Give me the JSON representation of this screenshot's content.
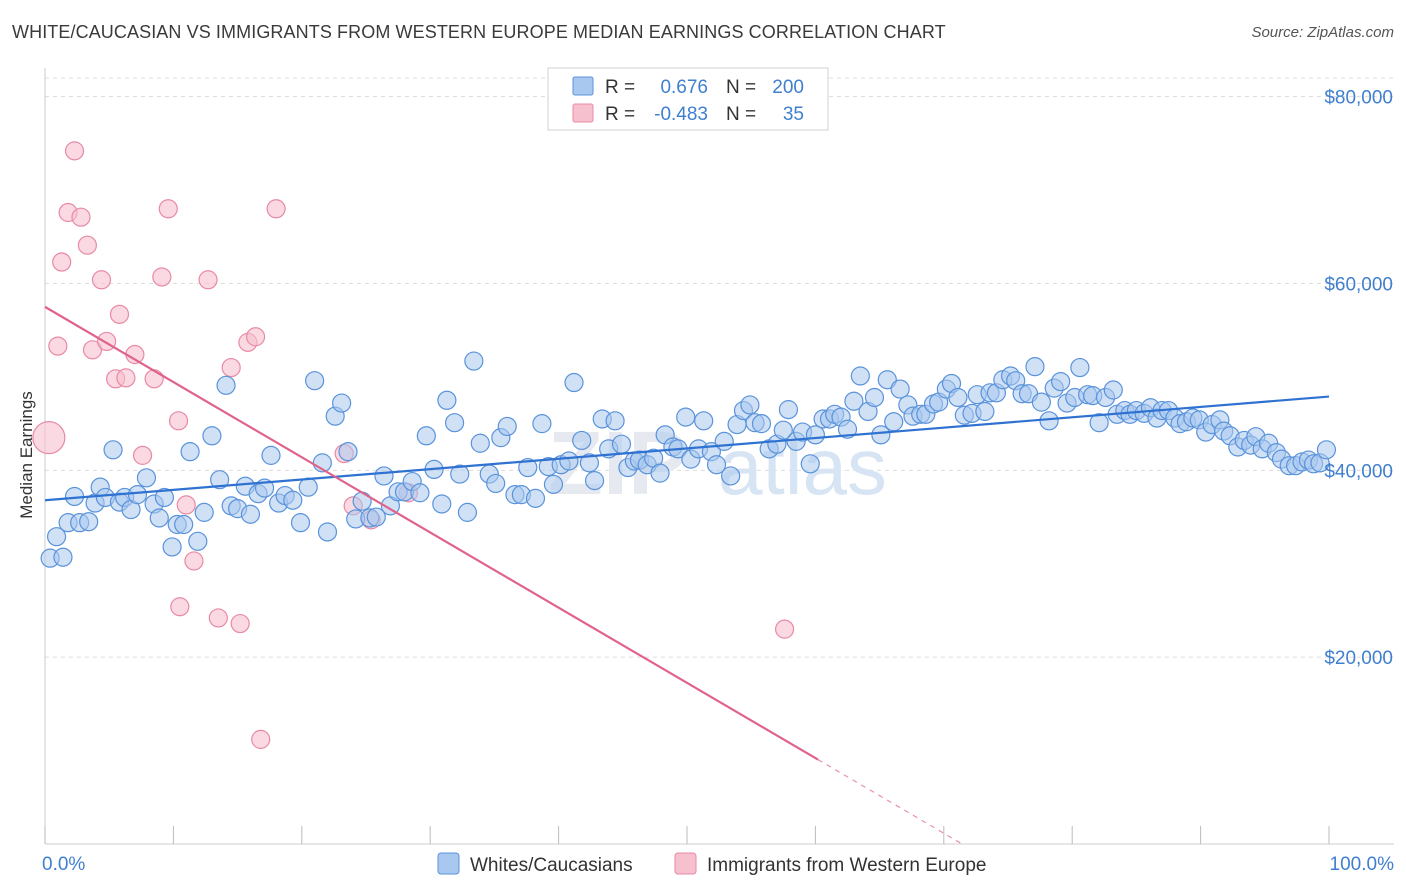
{
  "title": "WHITE/CAUCASIAN VS IMMIGRANTS FROM WESTERN EUROPE MEDIAN EARNINGS CORRELATION CHART",
  "source": "Source: ZipAtlas.com",
  "watermark": {
    "zip": "ZIP",
    "atlas": "atlas"
  },
  "legend_box": {
    "rows": [
      {
        "r_label": "R =",
        "r_value": "0.676",
        "n_label": "N =",
        "n_value": "200"
      },
      {
        "r_label": "R =",
        "r_value": "-0.483",
        "n_label": "N =",
        "n_value": "35"
      }
    ]
  },
  "colors": {
    "blue_fill": "#a9c8ef",
    "blue_stroke": "#5a93db",
    "blue_line": "#2f72d2",
    "pink_fill": "#f6c0cf",
    "pink_stroke": "#e88aa5",
    "pink_line": "#e0628b",
    "axis_text": "#3f7fd0",
    "grid": "#dcdcdc"
  },
  "chart_data": {
    "type": "scatter",
    "title": "WHITE/CAUCASIAN VS IMMIGRANTS FROM WESTERN EUROPE MEDIAN EARNINGS CORRELATION CHART",
    "xlabel": "",
    "ylabel": "Median Earnings",
    "xlim": [
      0,
      100
    ],
    "ylim": [
      0,
      82000
    ],
    "x_tick_labels": [
      "0.0%",
      "100.0%"
    ],
    "y_ticks": [
      20000,
      40000,
      60000,
      80000
    ],
    "y_tick_labels": [
      "$20,000",
      "$40,000",
      "$60,000",
      "$80,000"
    ],
    "grid": true,
    "legend_position": "bottom",
    "series": [
      {
        "name": "Whites/Caucasians",
        "r": 0.676,
        "n": 200,
        "trend": {
          "x": [
            0,
            100
          ],
          "y": [
            36800,
            47900
          ],
          "dashed_from": null
        },
        "points": [
          [
            0.4,
            30600
          ],
          [
            0.9,
            32900
          ],
          [
            1.4,
            30700
          ],
          [
            1.8,
            34400
          ],
          [
            2.3,
            37200
          ],
          [
            2.7,
            34400
          ],
          [
            3.4,
            34500
          ],
          [
            3.9,
            36500
          ],
          [
            4.3,
            38200
          ],
          [
            4.7,
            37100
          ],
          [
            5.3,
            42200
          ],
          [
            5.8,
            36600
          ],
          [
            6.2,
            37100
          ],
          [
            6.7,
            35800
          ],
          [
            7.2,
            37400
          ],
          [
            7.9,
            39200
          ],
          [
            8.5,
            36400
          ],
          [
            8.9,
            34900
          ],
          [
            9.3,
            37100
          ],
          [
            9.9,
            31800
          ],
          [
            10.3,
            34200
          ],
          [
            10.8,
            34200
          ],
          [
            11.3,
            42000
          ],
          [
            11.9,
            32400
          ],
          [
            12.4,
            35500
          ],
          [
            13.0,
            43700
          ],
          [
            13.6,
            39000
          ],
          [
            14.1,
            49100
          ],
          [
            14.5,
            36200
          ],
          [
            15.0,
            35900
          ],
          [
            15.6,
            38300
          ],
          [
            16.0,
            35300
          ],
          [
            16.6,
            37500
          ],
          [
            17.1,
            38100
          ],
          [
            17.6,
            41600
          ],
          [
            18.2,
            36500
          ],
          [
            18.7,
            37300
          ],
          [
            19.3,
            36800
          ],
          [
            19.9,
            34400
          ],
          [
            20.5,
            38200
          ],
          [
            21.0,
            49600
          ],
          [
            21.6,
            40800
          ],
          [
            22.0,
            33400
          ],
          [
            22.6,
            45800
          ],
          [
            23.1,
            47200
          ],
          [
            23.6,
            42000
          ],
          [
            24.2,
            34800
          ],
          [
            24.7,
            36700
          ],
          [
            25.3,
            34900
          ],
          [
            25.8,
            35000
          ],
          [
            26.4,
            39400
          ],
          [
            26.9,
            36200
          ],
          [
            27.5,
            37700
          ],
          [
            28.0,
            37700
          ],
          [
            28.6,
            38800
          ],
          [
            29.2,
            37600
          ],
          [
            29.7,
            43700
          ],
          [
            30.3,
            40100
          ],
          [
            30.9,
            36400
          ],
          [
            31.3,
            47500
          ],
          [
            31.9,
            45100
          ],
          [
            32.3,
            39600
          ],
          [
            32.9,
            35500
          ],
          [
            33.4,
            51700
          ],
          [
            33.9,
            42900
          ],
          [
            34.6,
            39600
          ],
          [
            35.1,
            38600
          ],
          [
            35.5,
            43500
          ],
          [
            36.0,
            44700
          ],
          [
            36.6,
            37400
          ],
          [
            37.1,
            37400
          ],
          [
            37.6,
            40300
          ],
          [
            38.2,
            37000
          ],
          [
            38.7,
            45000
          ],
          [
            39.2,
            40400
          ],
          [
            39.6,
            38500
          ],
          [
            40.2,
            40600
          ],
          [
            40.8,
            41000
          ],
          [
            41.2,
            49400
          ],
          [
            41.8,
            43200
          ],
          [
            42.4,
            40800
          ],
          [
            42.8,
            38900
          ],
          [
            43.4,
            45500
          ],
          [
            43.9,
            42300
          ],
          [
            44.4,
            45300
          ],
          [
            44.9,
            42800
          ],
          [
            45.4,
            40300
          ],
          [
            45.9,
            41000
          ],
          [
            46.3,
            41100
          ],
          [
            46.9,
            40600
          ],
          [
            47.4,
            41300
          ],
          [
            47.9,
            39700
          ],
          [
            48.3,
            43800
          ],
          [
            48.9,
            42500
          ],
          [
            49.3,
            42300
          ],
          [
            49.9,
            45700
          ],
          [
            50.3,
            41200
          ],
          [
            50.9,
            42300
          ],
          [
            51.3,
            45300
          ],
          [
            51.9,
            42000
          ],
          [
            52.3,
            40600
          ],
          [
            52.9,
            43100
          ],
          [
            53.4,
            39400
          ],
          [
            53.9,
            44900
          ],
          [
            54.4,
            46400
          ],
          [
            54.9,
            47000
          ],
          [
            55.3,
            45100
          ],
          [
            55.8,
            45000
          ],
          [
            56.4,
            42300
          ],
          [
            57.0,
            42800
          ],
          [
            57.5,
            44300
          ],
          [
            57.9,
            46500
          ],
          [
            58.5,
            43100
          ],
          [
            59.0,
            44100
          ],
          [
            59.6,
            40700
          ],
          [
            60.0,
            43800
          ],
          [
            60.6,
            45500
          ],
          [
            61.1,
            45500
          ],
          [
            61.5,
            46000
          ],
          [
            62.0,
            45700
          ],
          [
            62.5,
            44400
          ],
          [
            63.0,
            47400
          ],
          [
            63.5,
            50100
          ],
          [
            64.1,
            46300
          ],
          [
            64.6,
            47800
          ],
          [
            65.1,
            43800
          ],
          [
            65.6,
            49700
          ],
          [
            66.1,
            45200
          ],
          [
            66.6,
            48700
          ],
          [
            67.2,
            47000
          ],
          [
            67.6,
            45800
          ],
          [
            68.2,
            46000
          ],
          [
            68.6,
            46000
          ],
          [
            69.2,
            47100
          ],
          [
            69.6,
            47300
          ],
          [
            70.2,
            48700
          ],
          [
            70.6,
            49300
          ],
          [
            71.1,
            47800
          ],
          [
            71.6,
            45900
          ],
          [
            72.2,
            46100
          ],
          [
            72.6,
            48100
          ],
          [
            73.2,
            46300
          ],
          [
            73.6,
            48300
          ],
          [
            74.1,
            48300
          ],
          [
            74.6,
            49700
          ],
          [
            75.2,
            50100
          ],
          [
            75.6,
            49600
          ],
          [
            76.1,
            48200
          ],
          [
            76.6,
            48200
          ],
          [
            77.1,
            51100
          ],
          [
            77.6,
            47300
          ],
          [
            78.2,
            45300
          ],
          [
            78.6,
            48800
          ],
          [
            79.1,
            49500
          ],
          [
            79.6,
            47200
          ],
          [
            80.2,
            47800
          ],
          [
            80.6,
            51000
          ],
          [
            81.2,
            48100
          ],
          [
            81.6,
            48000
          ],
          [
            82.1,
            45100
          ],
          [
            82.6,
            47800
          ],
          [
            83.2,
            48600
          ],
          [
            83.5,
            46000
          ],
          [
            84.1,
            46400
          ],
          [
            84.5,
            46000
          ],
          [
            85.0,
            46400
          ],
          [
            85.6,
            46100
          ],
          [
            86.1,
            46700
          ],
          [
            86.6,
            45600
          ],
          [
            87.0,
            46400
          ],
          [
            87.5,
            46400
          ],
          [
            88.0,
            45600
          ],
          [
            88.4,
            45000
          ],
          [
            88.9,
            45200
          ],
          [
            89.4,
            45600
          ],
          [
            89.9,
            45400
          ],
          [
            90.4,
            44100
          ],
          [
            90.9,
            44900
          ],
          [
            91.5,
            45400
          ],
          [
            91.8,
            44200
          ],
          [
            92.3,
            43700
          ],
          [
            92.9,
            42500
          ],
          [
            93.4,
            43200
          ],
          [
            93.9,
            42700
          ],
          [
            94.3,
            43600
          ],
          [
            94.8,
            42300
          ],
          [
            95.3,
            42900
          ],
          [
            95.9,
            41900
          ],
          [
            96.3,
            41200
          ],
          [
            96.9,
            40500
          ],
          [
            97.4,
            40500
          ],
          [
            97.9,
            40900
          ],
          [
            98.4,
            41100
          ],
          [
            98.8,
            40700
          ],
          [
            99.3,
            40800
          ],
          [
            99.8,
            42200
          ]
        ]
      },
      {
        "name": "Immigrants from Western Europe",
        "r": -0.483,
        "n": 35,
        "trend": {
          "x": [
            0,
            100
          ],
          "y": [
            57500,
            -23000
          ],
          "dashed_from": 60.2
        },
        "points": [
          [
            0.3,
            43500
          ],
          [
            1.0,
            53300
          ],
          [
            1.3,
            62300
          ],
          [
            1.8,
            67600
          ],
          [
            2.3,
            74200
          ],
          [
            2.8,
            67100
          ],
          [
            3.3,
            64100
          ],
          [
            3.7,
            52900
          ],
          [
            4.4,
            60400
          ],
          [
            4.8,
            53800
          ],
          [
            5.5,
            49800
          ],
          [
            5.8,
            56700
          ],
          [
            6.3,
            49900
          ],
          [
            7.0,
            52400
          ],
          [
            7.6,
            41600
          ],
          [
            8.5,
            49800
          ],
          [
            9.1,
            60700
          ],
          [
            9.6,
            68000
          ],
          [
            10.5,
            25400
          ],
          [
            10.4,
            45300
          ],
          [
            11.0,
            36300
          ],
          [
            11.6,
            30300
          ],
          [
            12.7,
            60400
          ],
          [
            13.5,
            24200
          ],
          [
            14.5,
            51000
          ],
          [
            15.2,
            23600
          ],
          [
            15.8,
            53700
          ],
          [
            16.4,
            54300
          ],
          [
            16.8,
            11200
          ],
          [
            18.0,
            68000
          ],
          [
            23.3,
            41800
          ],
          [
            24.0,
            36200
          ],
          [
            25.4,
            34700
          ],
          [
            28.3,
            37600
          ],
          [
            57.6,
            23000
          ]
        ]
      }
    ]
  }
}
